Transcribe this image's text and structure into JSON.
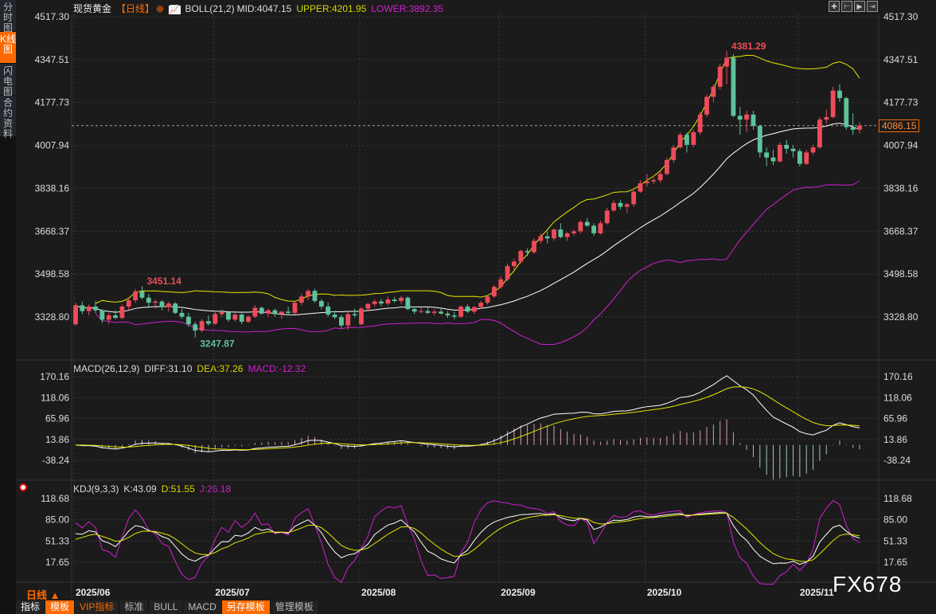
{
  "sidebar": {
    "items": [
      {
        "label": "分时图",
        "active": false
      },
      {
        "label": "K线图",
        "active": true
      },
      {
        "label": "闪电图",
        "active": false
      },
      {
        "label": "合约资料",
        "active": false
      }
    ]
  },
  "header": {
    "symbol": "现货黄金",
    "period_tag": "【日线】",
    "indicator": "BOLL(21,2)",
    "mid": "MID:4047.15",
    "upper": "UPPER:4201.95",
    "lower": "LOWER:3892.35"
  },
  "macd": {
    "name": "MACD(26,12,9)",
    "diff": "DIFF:31.10",
    "dea": "DEA:37.26",
    "macd": "MACD:-12.32"
  },
  "kdj": {
    "name": "KDJ(9,3,3)",
    "k": "K:43.09",
    "d": "D:51.55",
    "j": "J:26.18"
  },
  "period_selector": "日线 ▲",
  "watermark": "FX678",
  "current_price": "4086.15",
  "toolbar": [
    "指标",
    "模板",
    "VIP指标",
    "标准",
    "BULL",
    "MACD",
    "另存模板",
    "管理模板"
  ],
  "toolbar_active": [
    1,
    6
  ],
  "colors": {
    "up": "#ee4b5b",
    "down": "#5ec29a",
    "boll_mid": "#ffffff",
    "boll_upper": "#e6e600",
    "boll_lower": "#d21fd2",
    "accent": "#ff6a00"
  },
  "chart_data": [
    {
      "type": "candlestick",
      "title": "现货黄金 日线",
      "y_ticks": [
        "4517.30",
        "4347.51",
        "4177.73",
        "4007.94",
        "3838.16",
        "3668.37",
        "3498.58",
        "3328.80"
      ],
      "ylim": [
        3200,
        4517.3
      ],
      "x_ticks": [
        {
          "label": "2025/06",
          "index": 0
        },
        {
          "label": "2025/07",
          "index": 21
        },
        {
          "label": "2025/08",
          "index": 43
        },
        {
          "label": "2025/09",
          "index": 64
        },
        {
          "label": "2025/10",
          "index": 86
        },
        {
          "label": "2025/11",
          "index": 109
        }
      ],
      "annotations": [
        {
          "text": "4381.29",
          "index": 98,
          "value": 4381.29,
          "kind": "high"
        },
        {
          "text": "3451.14",
          "index": 10,
          "value": 3451.14,
          "kind": "high"
        },
        {
          "text": "3247.87",
          "index": 18,
          "value": 3247.87,
          "kind": "low"
        }
      ],
      "ohlc": [
        [
          3300,
          3385,
          3295,
          3375
        ],
        [
          3375,
          3390,
          3340,
          3352
        ],
        [
          3352,
          3378,
          3335,
          3370
        ],
        [
          3370,
          3392,
          3345,
          3355
        ],
        [
          3355,
          3360,
          3305,
          3318
        ],
        [
          3318,
          3345,
          3300,
          3335
        ],
        [
          3335,
          3355,
          3320,
          3325
        ],
        [
          3325,
          3378,
          3320,
          3370
        ],
        [
          3370,
          3402,
          3355,
          3395
        ],
        [
          3395,
          3440,
          3385,
          3430
        ],
        [
          3430,
          3451.14,
          3398,
          3405
        ],
        [
          3405,
          3420,
          3370,
          3385
        ],
        [
          3385,
          3398,
          3360,
          3390
        ],
        [
          3390,
          3395,
          3355,
          3368
        ],
        [
          3368,
          3390,
          3350,
          3382
        ],
        [
          3382,
          3388,
          3340,
          3345
        ],
        [
          3345,
          3360,
          3322,
          3330
        ],
        [
          3330,
          3345,
          3290,
          3300
        ],
        [
          3300,
          3310,
          3247.87,
          3275
        ],
        [
          3275,
          3320,
          3268,
          3312
        ],
        [
          3312,
          3335,
          3295,
          3302
        ],
        [
          3302,
          3352,
          3298,
          3340
        ],
        [
          3340,
          3358,
          3330,
          3348
        ],
        [
          3348,
          3352,
          3310,
          3318
        ],
        [
          3318,
          3345,
          3310,
          3338
        ],
        [
          3338,
          3345,
          3300,
          3310
        ],
        [
          3310,
          3335,
          3305,
          3330
        ],
        [
          3330,
          3375,
          3325,
          3365
        ],
        [
          3365,
          3370,
          3338,
          3342
        ],
        [
          3342,
          3362,
          3330,
          3355
        ],
        [
          3355,
          3362,
          3330,
          3340
        ],
        [
          3340,
          3352,
          3322,
          3350
        ],
        [
          3350,
          3370,
          3340,
          3345
        ],
        [
          3345,
          3388,
          3340,
          3385
        ],
        [
          3385,
          3420,
          3375,
          3410
        ],
        [
          3410,
          3438,
          3395,
          3432
        ],
        [
          3432,
          3440,
          3385,
          3392
        ],
        [
          3392,
          3400,
          3360,
          3370
        ],
        [
          3370,
          3385,
          3330,
          3338
        ],
        [
          3338,
          3352,
          3320,
          3328
        ],
        [
          3328,
          3338,
          3285,
          3295
        ],
        [
          3295,
          3350,
          3278,
          3340
        ],
        [
          3340,
          3362,
          3328,
          3335
        ],
        [
          3300,
          3368,
          3295,
          3362
        ],
        [
          3362,
          3385,
          3350,
          3380
        ],
        [
          3380,
          3398,
          3370,
          3390
        ],
        [
          3390,
          3400,
          3372,
          3382
        ],
        [
          3382,
          3410,
          3375,
          3398
        ],
        [
          3398,
          3408,
          3385,
          3392
        ],
        [
          3392,
          3412,
          3380,
          3405
        ],
        [
          3405,
          3410,
          3355,
          3360
        ],
        [
          3360,
          3370,
          3340,
          3350
        ],
        [
          3350,
          3365,
          3342,
          3352
        ],
        [
          3352,
          3368,
          3340,
          3345
        ],
        [
          3345,
          3360,
          3335,
          3350
        ],
        [
          3350,
          3365,
          3338,
          3342
        ],
        [
          3342,
          3352,
          3325,
          3335
        ],
        [
          3335,
          3350,
          3320,
          3330
        ],
        [
          3330,
          3375,
          3325,
          3370
        ],
        [
          3370,
          3378,
          3345,
          3350
        ],
        [
          3350,
          3372,
          3340,
          3368
        ],
        [
          3368,
          3392,
          3360,
          3385
        ],
        [
          3385,
          3415,
          3378,
          3410
        ],
        [
          3410,
          3455,
          3405,
          3448
        ],
        [
          3448,
          3490,
          3440,
          3478
        ],
        [
          3478,
          3540,
          3470,
          3530
        ],
        [
          3530,
          3560,
          3515,
          3548
        ],
        [
          3548,
          3595,
          3540,
          3590
        ],
        [
          3590,
          3600,
          3570,
          3585
        ],
        [
          3585,
          3640,
          3578,
          3630
        ],
        [
          3630,
          3660,
          3620,
          3648
        ],
        [
          3648,
          3668,
          3620,
          3640
        ],
        [
          3640,
          3680,
          3630,
          3675
        ],
        [
          3675,
          3700,
          3640,
          3645
        ],
        [
          3645,
          3665,
          3630,
          3660
        ],
        [
          3660,
          3675,
          3650,
          3668
        ],
        [
          3668,
          3712,
          3660,
          3705
        ],
        [
          3705,
          3720,
          3685,
          3690
        ],
        [
          3690,
          3700,
          3650,
          3660
        ],
        [
          3660,
          3710,
          3655,
          3700
        ],
        [
          3700,
          3760,
          3695,
          3750
        ],
        [
          3750,
          3790,
          3745,
          3780
        ],
        [
          3780,
          3792,
          3755,
          3765
        ],
        [
          3765,
          3780,
          3740,
          3775
        ],
        [
          3775,
          3830,
          3765,
          3825
        ],
        [
          3825,
          3870,
          3820,
          3858
        ],
        [
          3858,
          3895,
          3845,
          3865
        ],
        [
          3865,
          3880,
          3855,
          3870
        ],
        [
          3870,
          3905,
          3860,
          3895
        ],
        [
          3895,
          3960,
          3890,
          3950
        ],
        [
          3950,
          4010,
          3940,
          4000
        ],
        [
          4000,
          4060,
          3995,
          4050
        ],
        [
          4050,
          4060,
          3980,
          4010
        ],
        [
          4010,
          4070,
          4000,
          4060
        ],
        [
          4060,
          4140,
          4050,
          4130
        ],
        [
          4130,
          4210,
          4120,
          4200
        ],
        [
          4200,
          4250,
          4180,
          4240
        ],
        [
          4240,
          4330,
          4230,
          4320
        ],
        [
          4320,
          4381.29,
          4250,
          4355
        ],
        [
          4355,
          4370,
          4120,
          4125
        ],
        [
          4125,
          4160,
          4050,
          4110
        ],
        [
          4110,
          4145,
          4060,
          4130
        ],
        [
          4130,
          4145,
          4070,
          4085
        ],
        [
          4085,
          4090,
          3960,
          3980
        ],
        [
          3980,
          4000,
          3925,
          3960
        ],
        [
          3960,
          3990,
          3930,
          3945
        ],
        [
          3945,
          4020,
          3940,
          4010
        ],
        [
          4010,
          4030,
          3975,
          3995
        ],
        [
          3995,
          4010,
          3960,
          3985
        ],
        [
          3985,
          3995,
          3925,
          3935
        ],
        [
          3935,
          3990,
          3930,
          3980
        ],
        [
          3980,
          4010,
          3970,
          4000
        ],
        [
          4000,
          4120,
          3995,
          4110
        ],
        [
          4110,
          4150,
          4095,
          4120
        ],
        [
          4120,
          4240,
          4115,
          4225
        ],
        [
          4225,
          4250,
          4180,
          4195
        ],
        [
          4195,
          4200,
          4070,
          4080
        ],
        [
          4080,
          4135,
          4050,
          4070
        ],
        [
          4070,
          4100,
          4055,
          4086.15
        ]
      ],
      "overlays": [
        "BOLL(21,2)"
      ]
    },
    {
      "type": "line",
      "title": "MACD(26,12,9)",
      "y_ticks": [
        "170.16",
        "118.06",
        "65.96",
        "13.86",
        "-38.24"
      ],
      "ylim": [
        -70,
        190
      ],
      "series": [
        "DIFF",
        "DEA",
        "MACD"
      ]
    },
    {
      "type": "line",
      "title": "KDJ(9,3,3)",
      "y_ticks": [
        "118.68",
        "85.00",
        "51.33",
        "17.65"
      ],
      "ylim": [
        -5,
        130
      ],
      "series": [
        "K",
        "D",
        "J"
      ]
    }
  ]
}
